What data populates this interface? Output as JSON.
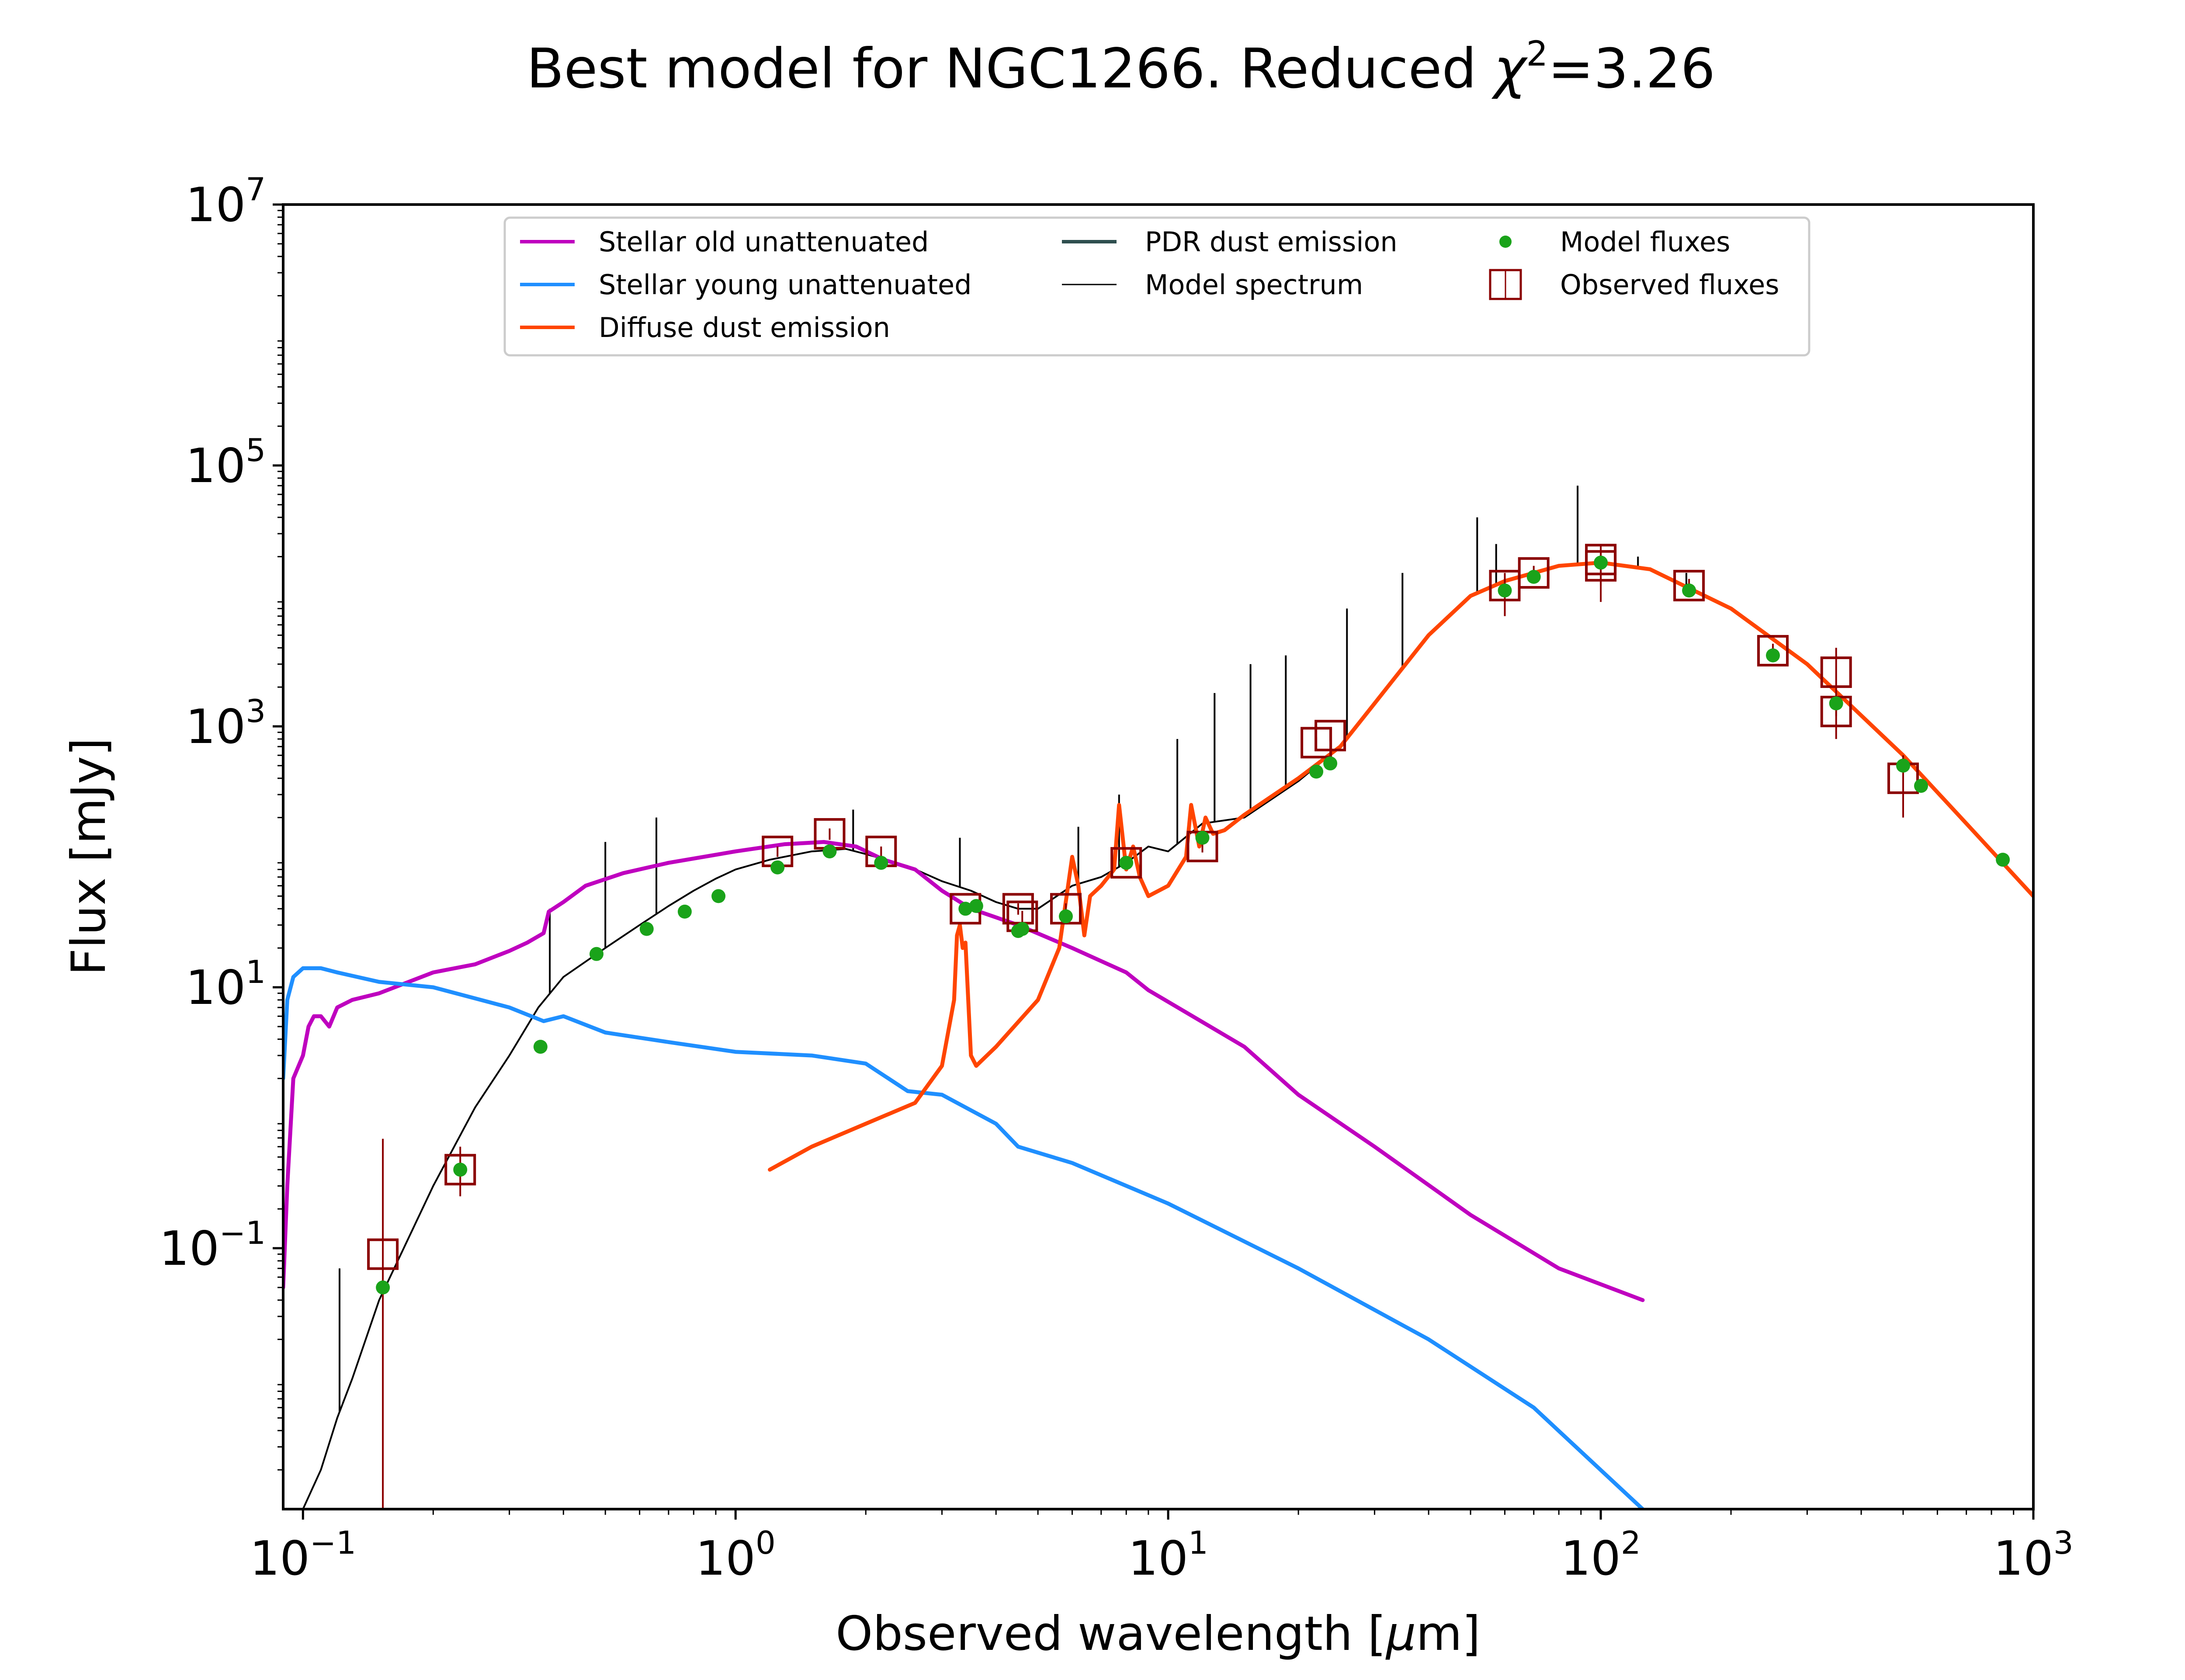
{
  "chart_data": {
    "type": "line",
    "title": {
      "prefix": "Best model for NGC1266. Reduced ",
      "symbol": "χ",
      "superscript": "2",
      "suffix": "=3.26"
    },
    "xlabel": {
      "prefix": "Observed wavelength [",
      "unit_symbol": "μ",
      "unit_rest": "m]"
    },
    "ylabel": "Flux [mJy]",
    "x_scale": "log",
    "y_scale": "log",
    "xlim": [
      0.09,
      1000
    ],
    "ylim": [
      0.001,
      10000000
    ],
    "x_ticks": [
      {
        "value": 0.1,
        "base": "10",
        "exp": "−1"
      },
      {
        "value": 1,
        "base": "10",
        "exp": "0"
      },
      {
        "value": 10,
        "base": "10",
        "exp": "1"
      },
      {
        "value": 100,
        "base": "10",
        "exp": "2"
      },
      {
        "value": 1000,
        "base": "10",
        "exp": "3"
      }
    ],
    "y_ticks": [
      {
        "value": 0.1,
        "base": "10",
        "exp": "−1"
      },
      {
        "value": 10,
        "base": "10",
        "exp": "1"
      },
      {
        "value": 1000,
        "base": "10",
        "exp": "3"
      },
      {
        "value": 100000,
        "base": "10",
        "exp": "5"
      },
      {
        "value": 10000000,
        "base": "10",
        "exp": "7"
      }
    ],
    "grid": false,
    "legend_position": "top-center",
    "series": [
      {
        "name": "Stellar old unattenuated",
        "kind": "line",
        "color": "#bf00bf",
        "x": [
          0.09,
          0.092,
          0.095,
          0.1,
          0.103,
          0.106,
          0.11,
          0.115,
          0.12,
          0.13,
          0.15,
          0.2,
          0.25,
          0.3,
          0.33,
          0.36,
          0.37,
          0.4,
          0.45,
          0.55,
          0.7,
          1.0,
          1.3,
          1.6,
          1.9,
          2.2,
          2.6,
          3.0,
          3.5,
          4.5,
          6,
          8,
          9,
          15,
          20,
          30,
          50,
          80,
          125
        ],
        "y": [
          0.05,
          0.3,
          2,
          3,
          5,
          6,
          6,
          5,
          7,
          8,
          9,
          13,
          15,
          19,
          22,
          26,
          38,
          45,
          60,
          75,
          90,
          110,
          125,
          130,
          120,
          95,
          80,
          55,
          40,
          30,
          20,
          13,
          9.5,
          3.5,
          1.5,
          0.6,
          0.18,
          0.07,
          0.04
        ]
      },
      {
        "name": "Stellar young unattenuated",
        "kind": "line",
        "color": "#1f8fff",
        "x": [
          0.09,
          0.092,
          0.095,
          0.1,
          0.11,
          0.12,
          0.15,
          0.2,
          0.3,
          0.36,
          0.4,
          0.5,
          0.7,
          1.0,
          1.5,
          2.0,
          2.5,
          3.0,
          4.0,
          4.5,
          6,
          10,
          20,
          40,
          70,
          125
        ],
        "y": [
          2,
          8,
          12,
          14,
          14,
          13,
          11,
          10,
          7,
          5.5,
          6,
          4.5,
          3.8,
          3.2,
          3.0,
          2.6,
          1.6,
          1.5,
          0.9,
          0.6,
          0.45,
          0.22,
          0.07,
          0.02,
          0.006,
          0.001
        ]
      },
      {
        "name": "Diffuse dust emission",
        "kind": "line",
        "color": "#ff4500",
        "x": [
          1.2,
          1.5,
          2.0,
          2.6,
          3.0,
          3.2,
          3.25,
          3.3,
          3.35,
          3.4,
          3.5,
          3.6,
          4.0,
          5.0,
          5.6,
          6.0,
          6.2,
          6.4,
          6.6,
          7.0,
          7.5,
          7.7,
          8.0,
          8.3,
          8.6,
          9.0,
          10.0,
          11.0,
          11.3,
          11.8,
          12.2,
          12.7,
          13.5,
          15,
          20,
          25,
          30,
          40,
          50,
          60,
          80,
          100,
          130,
          200,
          300,
          500,
          700,
          1000
        ],
        "y": [
          0.4,
          0.6,
          0.9,
          1.3,
          2.5,
          8,
          25,
          30,
          20,
          22,
          3,
          2.5,
          3.5,
          8,
          20,
          100,
          60,
          25,
          50,
          60,
          80,
          250,
          80,
          120,
          70,
          50,
          60,
          100,
          250,
          120,
          200,
          150,
          160,
          210,
          400,
          700,
          1500,
          5000,
          10000,
          13000,
          17000,
          18000,
          16000,
          8000,
          3000,
          600,
          180,
          50
        ]
      },
      {
        "name": "PDR dust emission",
        "kind": "line",
        "color": "#2f4f4f",
        "x": [],
        "y": []
      },
      {
        "name": "Model spectrum",
        "kind": "line",
        "color": "#000000",
        "x": [
          0.1,
          0.11,
          0.12,
          0.13,
          0.15,
          0.2,
          0.25,
          0.3,
          0.35,
          0.4,
          0.5,
          0.6,
          0.7,
          0.8,
          0.9,
          1.0,
          1.2,
          1.5,
          1.8,
          2.0,
          2.5,
          3.0,
          3.5,
          4.0,
          4.5,
          5.0,
          6.0,
          7.0,
          8.0,
          9.0,
          10,
          12,
          15,
          20,
          25,
          30,
          40,
          50,
          60,
          80,
          100,
          130,
          200,
          300,
          500,
          700,
          1000
        ],
        "y": [
          0.001,
          0.002,
          0.005,
          0.01,
          0.04,
          0.3,
          1.2,
          3,
          7,
          12,
          20,
          30,
          42,
          55,
          68,
          80,
          95,
          110,
          115,
          105,
          85,
          65,
          55,
          45,
          40,
          40,
          60,
          70,
          90,
          120,
          110,
          180,
          200,
          380,
          700,
          1500,
          5000,
          10000,
          13000,
          17000,
          18000,
          16000,
          8000,
          3000,
          600,
          180,
          50
        ],
        "spikes": [
          {
            "x": 0.1215,
            "top": 0.07
          },
          {
            "x": 0.372,
            "top": 40
          },
          {
            "x": 0.5,
            "top": 130
          },
          {
            "x": 0.656,
            "top": 200
          },
          {
            "x": 1.87,
            "top": 230
          },
          {
            "x": 3.3,
            "top": 140
          },
          {
            "x": 6.2,
            "top": 170
          },
          {
            "x": 7.7,
            "top": 300
          },
          {
            "x": 10.5,
            "top": 800
          },
          {
            "x": 12.8,
            "top": 1800
          },
          {
            "x": 15.5,
            "top": 3000
          },
          {
            "x": 18.7,
            "top": 3500
          },
          {
            "x": 25.9,
            "top": 8000
          },
          {
            "x": 34.8,
            "top": 15000
          },
          {
            "x": 51.8,
            "top": 40000
          },
          {
            "x": 57.3,
            "top": 25000
          },
          {
            "x": 88.4,
            "top": 70000
          },
          {
            "x": 121.9,
            "top": 20000
          },
          {
            "x": 157.7,
            "top": 15000
          }
        ]
      },
      {
        "name": "Model fluxes",
        "kind": "points",
        "color": "#1aa31a",
        "x": [
          0.153,
          0.231,
          0.354,
          0.477,
          0.623,
          0.763,
          0.913,
          1.25,
          1.65,
          2.17,
          3.4,
          3.6,
          4.5,
          4.6,
          5.8,
          8.0,
          12,
          22,
          23.7,
          60,
          70,
          100,
          160,
          250,
          350,
          500,
          550,
          850
        ],
        "y": [
          0.05,
          0.4,
          3.5,
          18,
          28,
          38,
          50,
          83,
          110,
          90,
          40,
          42,
          27,
          28,
          35,
          90,
          140,
          450,
          520,
          11000,
          14000,
          18000,
          11000,
          3500,
          1500,
          500,
          350,
          95
        ]
      },
      {
        "name": "Observed fluxes",
        "kind": "errorbar-squares",
        "color": "#8b0000",
        "x": [
          0.153,
          0.231,
          1.25,
          1.65,
          2.17,
          3.4,
          4.5,
          4.6,
          5.8,
          8.0,
          12,
          22,
          23.7,
          60,
          70,
          100,
          100,
          160,
          250,
          350,
          350,
          500
        ],
        "y": [
          0.09,
          0.4,
          110,
          150,
          110,
          40,
          40,
          35,
          40,
          90,
          120,
          750,
          850,
          12000,
          15000,
          19000,
          17000,
          12000,
          3800,
          2600,
          1300,
          400
        ],
        "yerr_low": [
          0.0899,
          0.15,
          10,
          15,
          10,
          4,
          4,
          3.5,
          4,
          9,
          12,
          75,
          85,
          5000,
          2000,
          10000,
          5000,
          1500,
          500,
          1400,
          500,
          200
        ],
        "yerr_high": [
          0.6,
          0.2,
          10,
          15,
          10,
          4,
          4,
          3.5,
          4,
          9,
          12,
          75,
          85,
          3000,
          2000,
          6000,
          5000,
          1500,
          500,
          1400,
          500,
          200
        ]
      }
    ]
  }
}
